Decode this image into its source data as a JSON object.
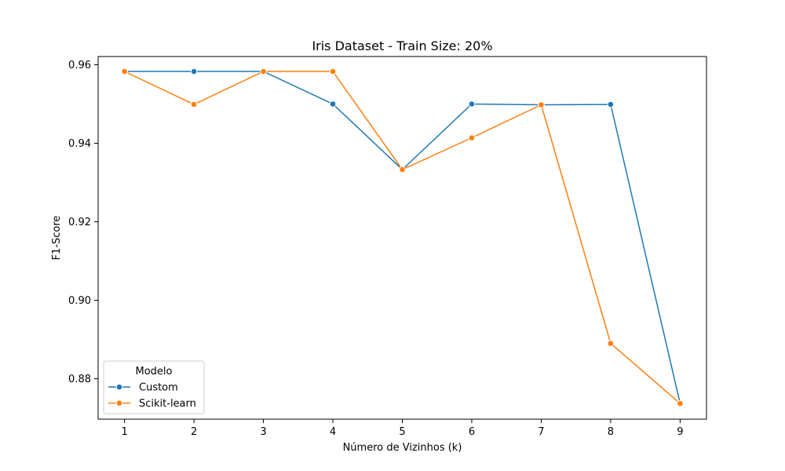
{
  "chart_data": {
    "type": "line",
    "title": "Iris Dataset - Train Size: 20%",
    "xlabel": "Número de Vizinhos (k)",
    "ylabel": "F1-Score",
    "x": [
      1,
      2,
      3,
      4,
      5,
      6,
      7,
      8,
      9
    ],
    "xlim": [
      0.62,
      9.38
    ],
    "ylim": [
      0.8697,
      0.9621
    ],
    "xticks": [
      "1",
      "2",
      "3",
      "4",
      "5",
      "6",
      "7",
      "8",
      "9"
    ],
    "yticks": [
      {
        "value": 0.88,
        "label": "0.88"
      },
      {
        "value": 0.9,
        "label": "0.90"
      },
      {
        "value": 0.92,
        "label": "0.92"
      },
      {
        "value": 0.94,
        "label": "0.94"
      },
      {
        "value": 0.96,
        "label": "0.96"
      }
    ],
    "grid": false,
    "legend": {
      "title": "Modelo",
      "position": "lower-left"
    },
    "series": [
      {
        "name": "Custom",
        "color": "#1f77b4",
        "values": [
          0.9583,
          0.9583,
          0.9583,
          0.95,
          0.9333,
          0.95,
          0.9498,
          0.9499,
          0.8737
        ]
      },
      {
        "name": "Scikit-learn",
        "color": "#ff7f0e",
        "values": [
          0.9583,
          0.9499,
          0.9583,
          0.9583,
          0.9333,
          0.9414,
          0.9498,
          0.889,
          0.8737
        ]
      }
    ]
  }
}
